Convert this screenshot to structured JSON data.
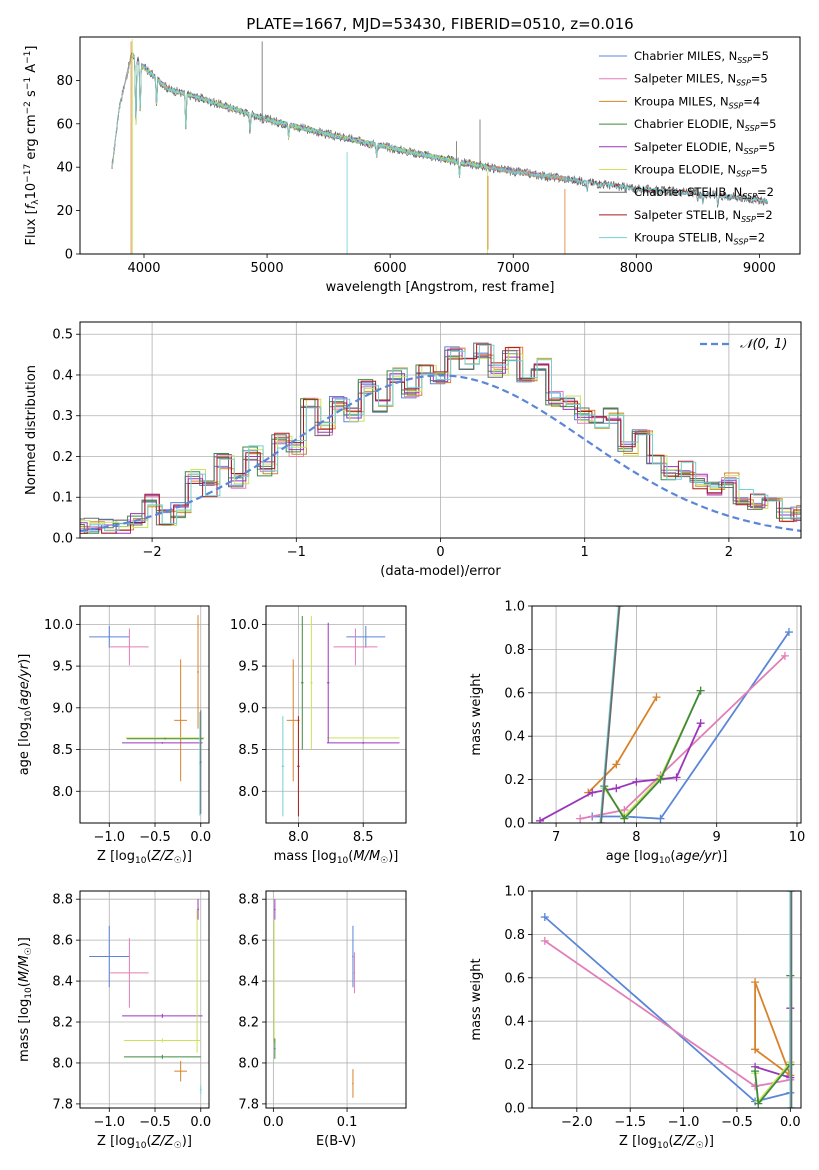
{
  "figure_title": "PLATE=1667, MJD=53430, FIBERID=0510, z=0.016",
  "colors": {
    "Chabrier MILES": "#5b86d8",
    "Salpeter MILES": "#e17fb8",
    "Kroupa MILES": "#d9822b",
    "Chabrier ELODIE": "#3f8a3f",
    "Salpeter ELODIE": "#9b36bb",
    "Kroupa ELODIE": "#c9e35a",
    "Chabrier STELIB": "#6b6b6b",
    "Salpeter STELIB": "#a51d1d",
    "Kroupa STELIB": "#72d0d6",
    "gauss": "#5b86d8"
  },
  "chart_data": [
    {
      "type": "line",
      "xlabel": "wavelength [Angstrom, rest frame]",
      "ylabel": "Flux [f_λ10^{-17} erg cm^{-2} s^{-1} A^{-1}]",
      "xlim": [
        3480,
        9330
      ],
      "ylim": [
        0,
        100
      ],
      "xticks": [
        "4000",
        "5000",
        "6000",
        "7000",
        "8000",
        "9000"
      ],
      "yticks": [
        "0",
        "20",
        "40",
        "60",
        "80"
      ],
      "legend": "top-right",
      "spectrum_trend": {
        "x": [
          3740,
          3800,
          3900,
          4000,
          4200,
          4500,
          5000,
          5500,
          6000,
          6500,
          7000,
          7500,
          8000,
          8500,
          9000,
          9070
        ],
        "y": [
          40,
          68,
          92,
          86,
          76,
          71,
          62,
          55,
          49,
          43,
          38,
          34,
          30,
          28,
          25,
          24
        ]
      },
      "series": [
        {
          "name": "Chabrier MILES, N_SSP=5",
          "x_range": [
            3740,
            7430
          ]
        },
        {
          "name": "Salpeter MILES, N_SSP=5",
          "x_range": [
            3740,
            7430
          ]
        },
        {
          "name": "Kroupa MILES, N_SSP=4",
          "x_range": [
            3740,
            7430
          ]
        },
        {
          "name": "Chabrier ELODIE, N_SSP=5",
          "x_range": [
            3890,
            6800
          ]
        },
        {
          "name": "Salpeter ELODIE, N_SSP=5",
          "x_range": [
            3890,
            6800
          ]
        },
        {
          "name": "Kroupa ELODIE, N_SSP=5",
          "x_range": [
            3890,
            6800
          ]
        },
        {
          "name": "Chabrier STELIB, N_SSP=2",
          "x_range": [
            3740,
            9070
          ]
        },
        {
          "name": "Salpeter STELIB, N_SSP=2",
          "x_range": [
            3740,
            9070
          ]
        },
        {
          "name": "Kroupa STELIB, N_SSP=2",
          "x_range": [
            3740,
            9070
          ]
        }
      ]
    },
    {
      "type": "line",
      "subtype": "step-histogram",
      "xlabel": "(data-model)/error",
      "ylabel": "Normed distribution",
      "xlim": [
        -2.5,
        2.5
      ],
      "ylim": [
        0,
        0.53
      ],
      "xticks": [
        "−2",
        "−1",
        "0",
        "1",
        "2"
      ],
      "yticks": [
        "0.0",
        "0.1",
        "0.2",
        "0.3",
        "0.4",
        "0.5"
      ],
      "legend_label": "𝒩(0, 1)",
      "bin_width": 0.1,
      "base_histogram": [
        0.03,
        0.03,
        0.03,
        0.03,
        0.04,
        0.09,
        0.05,
        0.07,
        0.15,
        0.12,
        0.19,
        0.14,
        0.21,
        0.17,
        0.24,
        0.22,
        0.33,
        0.27,
        0.33,
        0.3,
        0.37,
        0.32,
        0.4,
        0.36,
        0.42,
        0.39,
        0.45,
        0.43,
        0.46,
        0.41,
        0.45,
        0.4,
        0.43,
        0.34,
        0.33,
        0.3,
        0.28,
        0.3,
        0.22,
        0.25,
        0.2,
        0.16,
        0.17,
        0.14,
        0.12,
        0.14,
        0.1,
        0.09,
        0.1,
        0.06,
        0.06
      ]
    },
    {
      "type": "scatter",
      "subtype": "errorbars",
      "xlabel": "Z [log10(Z/Z☉)]",
      "ylabel": "age [log10(age/yr)]",
      "xlim": [
        -1.32,
        0.09
      ],
      "ylim": [
        7.62,
        10.22
      ],
      "xticks": [
        "−1.0",
        "−0.5",
        "0.0"
      ],
      "yticks": [
        "8.0",
        "8.5",
        "9.0",
        "9.5",
        "10.0"
      ],
      "points": [
        {
          "model": "Chabrier MILES",
          "x": -1.0,
          "xerr": 0.22,
          "y": 9.85,
          "yerr": 0.13
        },
        {
          "model": "Salpeter MILES",
          "x": -0.78,
          "xerr": 0.21,
          "y": 9.73,
          "yerr": 0.22
        },
        {
          "model": "Kroupa MILES",
          "x": -0.22,
          "xerr": 0.07,
          "y": 8.85,
          "yerr": 0.73
        },
        {
          "model": "Kroupa MILES",
          "x": -0.03,
          "xerr": 0.01,
          "y": 9.43,
          "yerr": 0.68
        },
        {
          "model": "Salpeter ELODIE",
          "x": -0.42,
          "xerr": 0.44,
          "y": 8.58,
          "yerr": 0.01
        },
        {
          "model": "Kroupa ELODIE",
          "x": -0.39,
          "xerr": 0.43,
          "y": 8.64,
          "yerr": 0.01
        },
        {
          "model": "Chabrier ELODIE",
          "x": -0.39,
          "xerr": 0.42,
          "y": 8.63,
          "yerr": 0.01
        },
        {
          "model": "Kroupa STELIB",
          "x": -0.01,
          "xerr": 0.01,
          "y": 8.33,
          "yerr": 0.62
        },
        {
          "model": "Chabrier STELIB",
          "x": 0.0,
          "xerr": 0.01,
          "y": 8.35,
          "yerr": 0.62
        }
      ]
    },
    {
      "type": "scatter",
      "subtype": "errorbars",
      "xlabel": "mass [log10(M/M☉)]",
      "ylabel": "",
      "xlim": [
        7.75,
        8.83
      ],
      "ylim": [
        7.62,
        10.22
      ],
      "xticks": [
        "8.0",
        "8.5"
      ],
      "yticks": [
        "8.0",
        "8.5",
        "9.0",
        "9.5",
        "10.0"
      ],
      "points": [
        {
          "model": "Chabrier MILES",
          "x": 8.52,
          "xerr": 0.15,
          "y": 9.85,
          "yerr": 0.13
        },
        {
          "model": "Salpeter MILES",
          "x": 8.44,
          "xerr": 0.17,
          "y": 9.73,
          "yerr": 0.22
        },
        {
          "model": "Kroupa MILES",
          "x": 7.96,
          "xerr": 0.05,
          "y": 8.85,
          "yerr": 0.73
        },
        {
          "model": "Salpeter ELODIE",
          "x": 8.5,
          "xerr": 0.28,
          "y": 8.58,
          "yerr": 0.01
        },
        {
          "model": "Kroupa ELODIE",
          "x": 8.5,
          "xerr": 0.28,
          "y": 8.64,
          "yerr": 0.01
        },
        {
          "model": "Salpeter ELODIE",
          "x": 8.23,
          "xerr": 0.01,
          "y": 9.3,
          "yerr": 0.72
        },
        {
          "model": "Kroupa ELODIE",
          "x": 8.1,
          "xerr": 0.01,
          "y": 9.3,
          "yerr": 0.8
        },
        {
          "model": "Chabrier ELODIE",
          "x": 8.03,
          "xerr": 0.01,
          "y": 9.3,
          "yerr": 0.8
        },
        {
          "model": "Kroupa STELIB",
          "x": 7.88,
          "xerr": 0.01,
          "y": 8.3,
          "yerr": 0.6
        },
        {
          "model": "Salpeter STELIB",
          "x": 8.0,
          "xerr": 0.01,
          "y": 8.3,
          "yerr": 0.6
        }
      ]
    },
    {
      "type": "line",
      "xlabel": "age [log10(age/yr)]",
      "ylabel": "mass weight",
      "xlim": [
        6.7,
        10.05
      ],
      "ylim": [
        0,
        1
      ],
      "xticks": [
        "7",
        "8",
        "9",
        "10"
      ],
      "yticks": [
        "0.0",
        "0.2",
        "0.4",
        "0.6",
        "0.8",
        "1.0"
      ],
      "series": [
        {
          "model": "Chabrier MILES",
          "x": [
            7.45,
            7.85,
            8.3,
            9.9
          ],
          "y": [
            0.03,
            0.03,
            0.02,
            0.88
          ]
        },
        {
          "model": "Salpeter MILES",
          "x": [
            7.3,
            7.85,
            8.3,
            9.85
          ],
          "y": [
            0.02,
            0.06,
            0.22,
            0.77
          ]
        },
        {
          "model": "Kroupa MILES",
          "x": [
            7.4,
            7.75,
            8.25
          ],
          "y": [
            0.14,
            0.27,
            0.58
          ]
        },
        {
          "model": "Salpeter ELODIE",
          "x": [
            6.8,
            7.45,
            7.75,
            8.0,
            8.5,
            8.8
          ],
          "y": [
            0.01,
            0.14,
            0.16,
            0.19,
            0.21,
            0.46
          ]
        },
        {
          "model": "Kroupa ELODIE",
          "x": [
            7.6,
            7.85,
            8.3,
            8.8
          ],
          "y": [
            0.16,
            0.03,
            0.21,
            0.61
          ]
        },
        {
          "model": "Chabrier ELODIE",
          "x": [
            7.6,
            7.85,
            8.3,
            8.8
          ],
          "y": [
            0.17,
            0.02,
            0.2,
            0.61
          ]
        },
        {
          "model": "Kroupa STELIB",
          "x": [
            7.55,
            7.78
          ],
          "y": [
            0.0,
            1.0
          ]
        },
        {
          "model": "Chabrier STELIB",
          "x": [
            7.56,
            7.79
          ],
          "y": [
            0.0,
            1.0
          ]
        }
      ]
    },
    {
      "type": "scatter",
      "subtype": "errorbars",
      "xlabel": "Z [log10(Z/Z☉)]",
      "ylabel": "mass [log10(M/M☉)]",
      "xlim": [
        -1.32,
        0.09
      ],
      "ylim": [
        7.78,
        8.84
      ],
      "xticks": [
        "−1.0",
        "−0.5",
        "0.0"
      ],
      "yticks": [
        "7.8",
        "8.0",
        "8.2",
        "8.4",
        "8.6",
        "8.8"
      ],
      "points": [
        {
          "model": "Chabrier MILES",
          "x": -1.0,
          "xerr": 0.22,
          "y": 8.52,
          "yerr": 0.15
        },
        {
          "model": "Salpeter MILES",
          "x": -0.78,
          "xerr": 0.21,
          "y": 8.44,
          "yerr": 0.17
        },
        {
          "model": "Kroupa MILES",
          "x": -0.22,
          "xerr": 0.07,
          "y": 7.96,
          "yerr": 0.05
        },
        {
          "model": "Salpeter ELODIE",
          "x": -0.42,
          "xerr": 0.44,
          "y": 8.23,
          "yerr": 0.01
        },
        {
          "model": "Kroupa ELODIE",
          "x": -0.42,
          "xerr": 0.42,
          "y": 8.11,
          "yerr": 0.01
        },
        {
          "model": "Chabrier ELODIE",
          "x": -0.42,
          "xerr": 0.42,
          "y": 8.03,
          "yerr": 0.01
        },
        {
          "model": "Salpeter ELODIE",
          "x": -0.03,
          "xerr": 0.01,
          "y": 8.75,
          "yerr": 0.05
        },
        {
          "model": "Kroupa ELODIE",
          "x": -0.04,
          "xerr": 0.01,
          "y": 8.4,
          "yerr": 0.35
        },
        {
          "model": "Kroupa STELIB",
          "x": 0.0,
          "xerr": 0.01,
          "y": 7.87,
          "yerr": 0.02
        }
      ]
    },
    {
      "type": "scatter",
      "subtype": "errorbars",
      "xlabel": "E(B-V)",
      "ylabel": "",
      "xlim": [
        -0.01,
        0.18
      ],
      "ylim": [
        7.78,
        8.84
      ],
      "xticks": [
        "0.0",
        "0.1"
      ],
      "yticks": [
        "7.8",
        "8.0",
        "8.2",
        "8.4",
        "8.6",
        "8.8"
      ],
      "points": [
        {
          "model": "Chabrier MILES",
          "x": 0.108,
          "xerr": 0.001,
          "y": 8.52,
          "yerr": 0.15
        },
        {
          "model": "Salpeter MILES",
          "x": 0.11,
          "xerr": 0.001,
          "y": 8.44,
          "yerr": 0.1
        },
        {
          "model": "Kroupa MILES",
          "x": 0.108,
          "xerr": 0.001,
          "y": 7.9,
          "yerr": 0.07
        },
        {
          "model": "Salpeter ELODIE",
          "x": 0.002,
          "xerr": 0.001,
          "y": 8.75,
          "yerr": 0.05
        },
        {
          "model": "Kroupa ELODIE",
          "x": 0.001,
          "xerr": 0.001,
          "y": 8.4,
          "yerr": 0.3
        },
        {
          "model": "Chabrier ELODIE",
          "x": 0.002,
          "xerr": 0.001,
          "y": 8.07,
          "yerr": 0.05
        }
      ]
    },
    {
      "type": "line",
      "xlabel": "Z [log10(Z/Z☉)]",
      "ylabel": "mass weight",
      "xlim": [
        -2.42,
        0.1
      ],
      "ylim": [
        0,
        1
      ],
      "xticks": [
        "−2.0",
        "−1.5",
        "−1.0",
        "−0.5",
        "0.0"
      ],
      "yticks": [
        "0.0",
        "0.2",
        "0.4",
        "0.6",
        "0.8",
        "1.0"
      ],
      "series": [
        {
          "model": "Chabrier MILES",
          "x": [
            -2.3,
            -0.33,
            0.0
          ],
          "y": [
            0.88,
            0.03,
            0.07
          ]
        },
        {
          "model": "Salpeter MILES",
          "x": [
            -2.3,
            -0.33,
            0.0
          ],
          "y": [
            0.77,
            0.1,
            0.13
          ]
        },
        {
          "model": "Kroupa MILES",
          "x": [
            -0.33,
            -0.33,
            0.0,
            -0.33
          ],
          "y": [
            0.27,
            0.58,
            0.15,
            0.27
          ]
        },
        {
          "model": "Salpeter ELODIE",
          "x": [
            -0.33,
            0.0,
            0.0,
            0.0
          ],
          "y": [
            0.19,
            0.14,
            0.46,
            0.21
          ]
        },
        {
          "model": "Kroupa ELODIE",
          "x": [
            -0.33,
            -0.3,
            0.0,
            0.0
          ],
          "y": [
            0.16,
            0.03,
            0.21,
            0.61
          ]
        },
        {
          "model": "Chabrier ELODIE",
          "x": [
            -0.33,
            -0.3,
            0.0,
            0.0
          ],
          "y": [
            0.17,
            0.02,
            0.2,
            0.61
          ]
        },
        {
          "model": "Kroupa STELIB",
          "x": [
            0.0,
            0.0
          ],
          "y": [
            0.0,
            1.0
          ]
        },
        {
          "model": "Chabrier STELIB",
          "x": [
            0.01,
            0.01
          ],
          "y": [
            0.0,
            1.0
          ]
        }
      ]
    }
  ]
}
